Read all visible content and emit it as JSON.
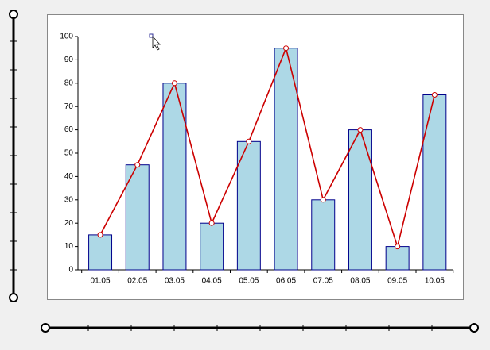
{
  "chart_data": {
    "type": "bar",
    "categories": [
      "01.05",
      "02.05",
      "03.05",
      "04.05",
      "05.05",
      "06.05",
      "07.05",
      "08.05",
      "09.05",
      "10.05"
    ],
    "series": [
      {
        "type": "bar",
        "color": "#add8e6",
        "values": [
          15,
          45,
          80,
          20,
          55,
          95,
          30,
          60,
          10,
          75
        ]
      },
      {
        "type": "line",
        "color": "#cc0000",
        "values": [
          15,
          45,
          80,
          20,
          55,
          95,
          30,
          60,
          10,
          75
        ]
      }
    ],
    "ylim": [
      0,
      100
    ],
    "yticks": [
      0,
      10,
      20,
      30,
      40,
      50,
      60,
      70,
      80,
      90,
      100
    ],
    "grid": false
  }
}
